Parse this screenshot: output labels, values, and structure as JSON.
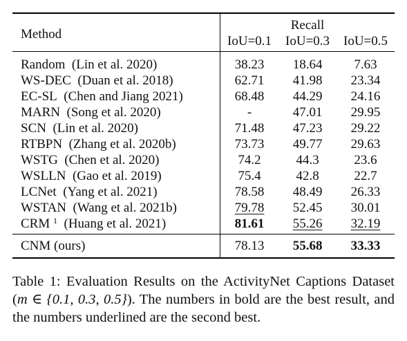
{
  "table": {
    "method_header": "Method",
    "recall_header": "Recall",
    "iou_headers": [
      "IoU=0.1",
      "IoU=0.3",
      "IoU=0.5"
    ],
    "rows": [
      {
        "name": "Random",
        "cite": "(Lin et al. 2020)",
        "sup": "",
        "v": [
          "38.23",
          "18.64",
          "7.63"
        ],
        "bold": [
          false,
          false,
          false
        ],
        "ul": [
          false,
          false,
          false
        ]
      },
      {
        "name": "WS-DEC",
        "cite": "(Duan et al. 2018)",
        "sup": "",
        "v": [
          "62.71",
          "41.98",
          "23.34"
        ],
        "bold": [
          false,
          false,
          false
        ],
        "ul": [
          false,
          false,
          false
        ]
      },
      {
        "name": "EC-SL",
        "cite": "(Chen and Jiang 2021)",
        "sup": "",
        "v": [
          "68.48",
          "44.29",
          "24.16"
        ],
        "bold": [
          false,
          false,
          false
        ],
        "ul": [
          false,
          false,
          false
        ]
      },
      {
        "name": "MARN",
        "cite": "(Song et al. 2020)",
        "sup": "",
        "v": [
          "-",
          "47.01",
          "29.95"
        ],
        "bold": [
          false,
          false,
          false
        ],
        "ul": [
          false,
          false,
          false
        ]
      },
      {
        "name": "SCN",
        "cite": "(Lin et al. 2020)",
        "sup": "",
        "v": [
          "71.48",
          "47.23",
          "29.22"
        ],
        "bold": [
          false,
          false,
          false
        ],
        "ul": [
          false,
          false,
          false
        ]
      },
      {
        "name": "RTBPN",
        "cite": "(Zhang et al. 2020b)",
        "sup": "",
        "v": [
          "73.73",
          "49.77",
          "29.63"
        ],
        "bold": [
          false,
          false,
          false
        ],
        "ul": [
          false,
          false,
          false
        ]
      },
      {
        "name": "WSTG",
        "cite": "(Chen et al. 2020)",
        "sup": "",
        "v": [
          "74.2",
          "44.3",
          "23.6"
        ],
        "bold": [
          false,
          false,
          false
        ],
        "ul": [
          false,
          false,
          false
        ]
      },
      {
        "name": "WSLLN",
        "cite": "(Gao et al. 2019)",
        "sup": "",
        "v": [
          "75.4",
          "42.8",
          "22.7"
        ],
        "bold": [
          false,
          false,
          false
        ],
        "ul": [
          false,
          false,
          false
        ]
      },
      {
        "name": "LCNet",
        "cite": "(Yang et al. 2021)",
        "sup": "",
        "v": [
          "78.58",
          "48.49",
          "26.33"
        ],
        "bold": [
          false,
          false,
          false
        ],
        "ul": [
          false,
          false,
          false
        ]
      },
      {
        "name": "WSTAN",
        "cite": "(Wang et al. 2021b)",
        "sup": "",
        "v": [
          "79.78",
          "52.45",
          "30.01"
        ],
        "bold": [
          false,
          false,
          false
        ],
        "ul": [
          true,
          false,
          false
        ]
      },
      {
        "name": "CRM",
        "cite": "(Huang et al. 2021)",
        "sup": "1",
        "v": [
          "81.61",
          "55.26",
          "32.19"
        ],
        "bold": [
          true,
          false,
          false
        ],
        "ul": [
          false,
          true,
          true
        ]
      }
    ],
    "ours": {
      "name": "CNM (ours)",
      "v": [
        "78.13",
        "55.68",
        "33.33"
      ],
      "bold": [
        false,
        true,
        true
      ],
      "ul": [
        false,
        false,
        false
      ]
    }
  },
  "caption": {
    "lead": "Table 1: Evaluation Results on the ActivityNet Captions Dataset (",
    "math": "m ∈ {0.1, 0.3, 0.5}",
    "rest": "). The numbers in bold are the best result, and the numbers underlined are the second best."
  }
}
